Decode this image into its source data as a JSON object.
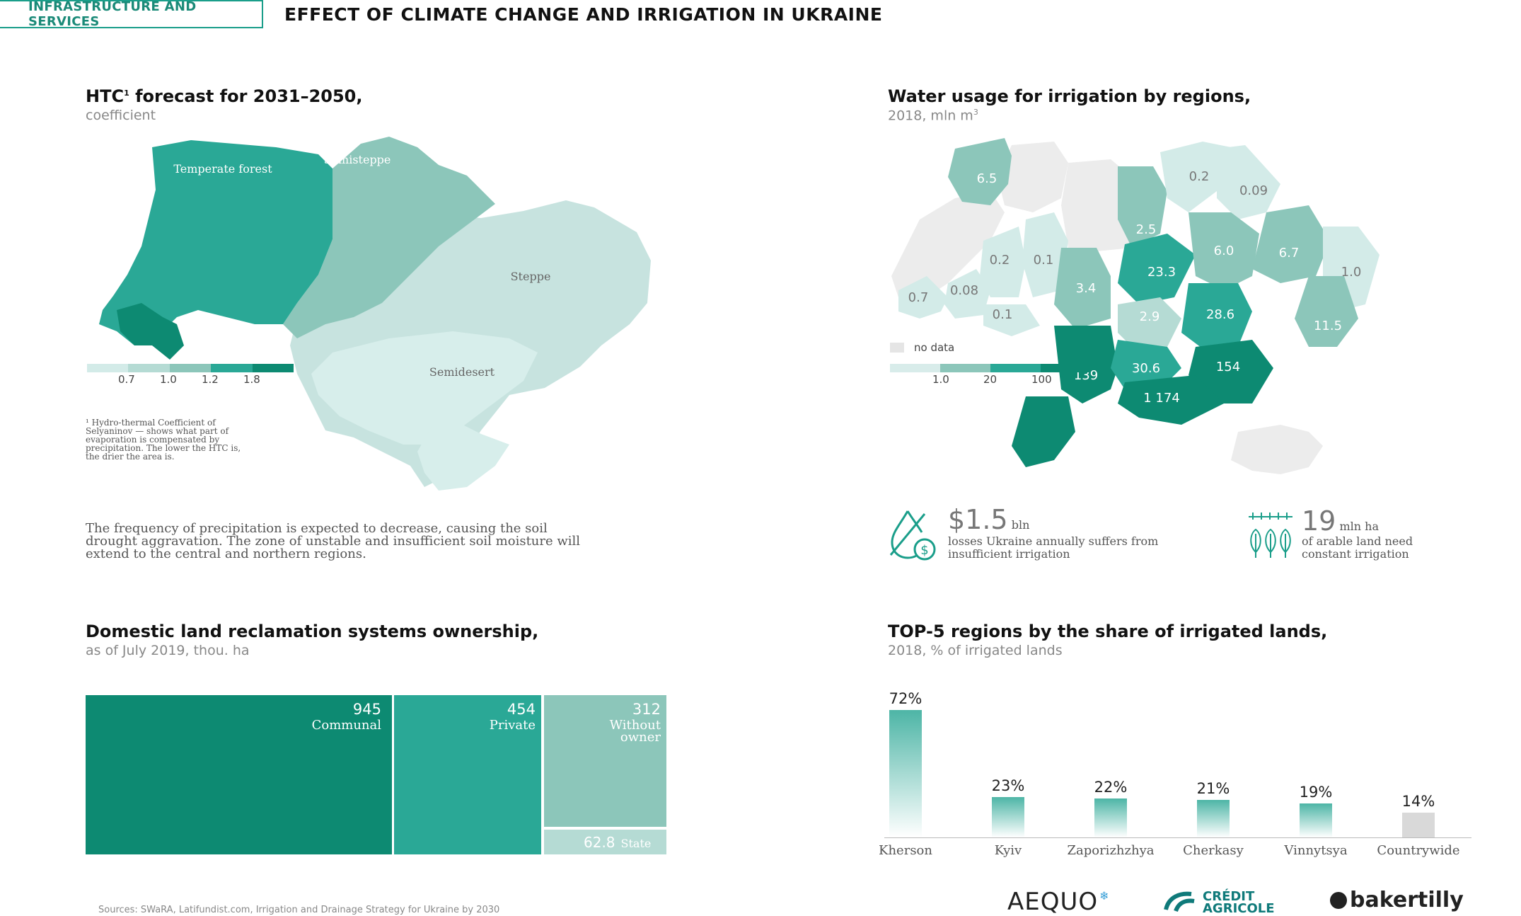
{
  "header": {
    "tag": "INFRASTRUCTURE AND SERVICES",
    "title": "EFFECT OF CLIMATE CHANGE AND IRRIGATION IN UKRAINE"
  },
  "htc": {
    "title": "HTC",
    "title_sup": "1",
    "title_rest": " forecast for 2031–2050,",
    "subtitle": "coefficient",
    "zones": [
      "Temperate forest",
      "Semisteppe",
      "Steppe",
      "Semidesert"
    ],
    "legend_ticks": [
      "0.7",
      "1.0",
      "1.2",
      "1.8"
    ],
    "legend_colors": [
      "#d3ebe8",
      "#b5dbd4",
      "#8cc6ba",
      "#2aa896",
      "#0d8a72"
    ],
    "footnote": "¹ Hydro-thermal Coefficient of Selyaninov — shows what part of evaporation is compensated by precipitation. The lower the HTC is, the drier the area is.",
    "paragraph": "The frequency of precipitation is expected to decrease, causing the soil drought aggravation. The zone of unstable and insufficient soil moisture will extend to the central and northern regions."
  },
  "water": {
    "title": "Water usage for irrigation by regions,",
    "subtitle": "2018, mln m",
    "subtitle_sup": "3",
    "regions": [
      "6.5",
      "0.2",
      "0.09",
      "2.5",
      "6.0",
      "6.7",
      "0.2",
      "0.1",
      "23.3",
      "1.0",
      "0.7",
      "0.08",
      "3.4",
      "0.1",
      "2.9",
      "28.6",
      "11.5",
      "139",
      "30.6",
      "154",
      "1 174"
    ],
    "no_data_label": "no data",
    "legend_ticks": [
      "1.0",
      "20",
      "100"
    ],
    "legend_colors": [
      "#d8ecea",
      "#8cc6ba",
      "#2aa896",
      "#0d8a72"
    ]
  },
  "stats": {
    "loss_value": "$1.5",
    "loss_unit": "bln",
    "loss_text": "losses Ukraine annually suffers from insufficient irrigation",
    "land_value": "19",
    "land_unit": "mln ha",
    "land_text": "of arable land need constant irrigation"
  },
  "ownership": {
    "title": "Domestic land reclamation systems ownership,",
    "subtitle": "as of July 2019, thou. ha",
    "items": [
      {
        "value": "945",
        "label": "Communal",
        "color": "#0d8a72"
      },
      {
        "value": "454",
        "label": "Private",
        "color": "#2aa896"
      },
      {
        "value": "312",
        "label": "Without owner",
        "color": "#8cc6ba"
      },
      {
        "value": "62.8",
        "label": "State",
        "color": "#b5dbd4"
      }
    ]
  },
  "top5": {
    "title": "TOP-5 regions by the share of irrigated lands,",
    "subtitle": "2018, % of irrigated lands"
  },
  "chart_data": {
    "type": "bar",
    "categories": [
      "Kherson",
      "Kyiv",
      "Zaporizhzhya",
      "Cherkasy",
      "Vinnytsya",
      "Countrywide"
    ],
    "values": [
      72,
      23,
      22,
      21,
      19,
      14
    ],
    "labels": [
      "72%",
      "23%",
      "22%",
      "21%",
      "19%",
      "14%"
    ],
    "title": "TOP-5 regions by the share of irrigated lands,",
    "subtitle": "2018, % of irrigated lands",
    "ylim": [
      0,
      72
    ],
    "grid": false
  },
  "footer": {
    "sources": "Sources: SWaRA, Latifundist.com, Irrigation and Drainage Strategy for Ukraine by 2030",
    "logos": [
      "AEQUO",
      "CRÉDIT",
      "AGRICOLE",
      "bakertilly"
    ]
  }
}
